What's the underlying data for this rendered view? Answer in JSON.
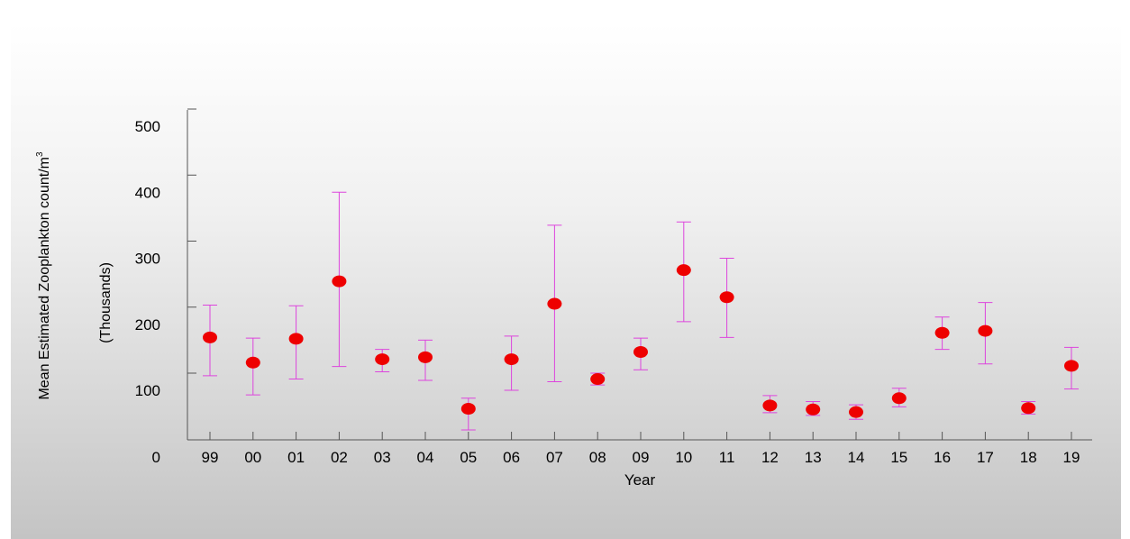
{
  "chart_data": {
    "type": "scatter",
    "xlabel": "Year",
    "ylabel": "Mean Estimated Zooplankton count/m",
    "ylabel_superscript": "3",
    "ylabel_units": "(Thousands)",
    "categories": [
      "99",
      "00",
      "01",
      "02",
      "03",
      "04",
      "05",
      "06",
      "07",
      "08",
      "09",
      "10",
      "11",
      "12",
      "13",
      "14",
      "15",
      "16",
      "17",
      "18",
      "19"
    ],
    "yticks": [
      "0",
      "100",
      "200",
      "300",
      "400",
      "500"
    ],
    "series": [
      {
        "values": [
          180,
          142,
          178,
          265,
          147,
          150,
          72,
          147,
          231,
          117,
          158,
          282,
          241,
          77,
          71,
          67,
          88,
          187,
          190,
          73,
          137
        ],
        "err_low": [
          122,
          93,
          117,
          136,
          128,
          115,
          40,
          100,
          113,
          108,
          131,
          204,
          180,
          66,
          62,
          56,
          75,
          162,
          140,
          64,
          102
        ],
        "err_high": [
          229,
          179,
          228,
          400,
          162,
          176,
          88,
          182,
          350,
          126,
          179,
          355,
          300,
          92,
          83,
          78,
          103,
          211,
          233,
          83,
          165
        ]
      }
    ],
    "ylim": [
      0,
      500
    ],
    "point_color": "#ee0000",
    "errorbar_color": "#dd44dd",
    "grid": false
  }
}
